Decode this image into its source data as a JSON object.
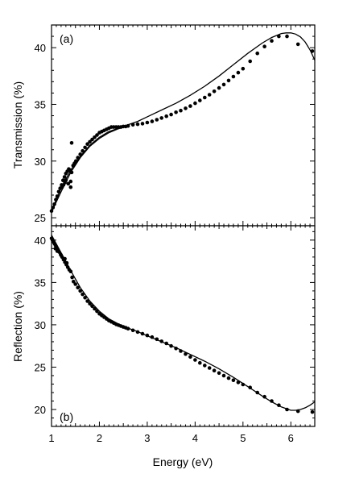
{
  "chart_data": [
    {
      "type": "scatter",
      "panel_label": "(a)",
      "xlabel": "",
      "ylabel": "Transmission (%)",
      "xlim": [
        1,
        6.5
      ],
      "ylim": [
        24.3,
        42
      ],
      "xticks": [
        1,
        2,
        3,
        4,
        5,
        6
      ],
      "yticks": [
        25,
        30,
        35,
        40
      ],
      "series": [
        {
          "kind": "points",
          "x": [
            1.0,
            1.03,
            1.06,
            1.09,
            1.12,
            1.15,
            1.18,
            1.21,
            1.24,
            1.27,
            1.3,
            1.33,
            1.36,
            1.39,
            1.42,
            1.45,
            1.48,
            1.51,
            1.55,
            1.6,
            1.65,
            1.7,
            1.75,
            1.8,
            1.85,
            1.9,
            1.95,
            2.0,
            2.05,
            2.1,
            2.15,
            2.2,
            2.25,
            2.3,
            2.35,
            2.4,
            2.45,
            2.5,
            2.55,
            2.6,
            2.7,
            2.8,
            2.9,
            3.0,
            3.1,
            3.2,
            3.3,
            3.4,
            3.5,
            3.6,
            3.7,
            3.8,
            3.9,
            4.0,
            4.1,
            4.2,
            4.3,
            4.4,
            4.5,
            4.6,
            4.7,
            4.8,
            4.9,
            5.0,
            5.15,
            5.3,
            5.45,
            5.6,
            5.75,
            5.92,
            6.15,
            6.45,
            1.42,
            1.4,
            1.4,
            1.35,
            1.3,
            1.28,
            1.25,
            1.22
          ],
          "y": [
            25.6,
            25.9,
            26.2,
            26.6,
            26.9,
            27.3,
            27.6,
            27.9,
            28.3,
            28.6,
            28.9,
            29.1,
            29.3,
            29.2,
            29.0,
            29.6,
            29.8,
            30.0,
            30.3,
            30.6,
            30.9,
            31.2,
            31.5,
            31.7,
            31.9,
            32.1,
            32.3,
            32.5,
            32.6,
            32.7,
            32.8,
            32.9,
            33.0,
            33.0,
            33.0,
            33.0,
            33.0,
            33.05,
            33.05,
            33.1,
            33.2,
            33.25,
            33.3,
            33.4,
            33.5,
            33.65,
            33.8,
            33.95,
            34.1,
            34.3,
            34.45,
            34.65,
            34.85,
            35.1,
            35.35,
            35.6,
            35.85,
            36.15,
            36.45,
            36.75,
            37.1,
            37.45,
            37.8,
            38.15,
            38.8,
            39.5,
            40.1,
            40.6,
            41.0,
            41.0,
            40.3,
            39.7,
            31.6,
            28.2,
            27.7,
            28.0,
            28.3,
            28.1,
            27.9,
            27.7
          ]
        },
        {
          "kind": "curve",
          "x": [
            1.0,
            1.2,
            1.4,
            1.6,
            1.8,
            2.0,
            2.2,
            2.4,
            2.6,
            2.8,
            3.0,
            3.3,
            3.6,
            3.9,
            4.2,
            4.5,
            4.8,
            5.1,
            5.4,
            5.6,
            5.8,
            5.9,
            6.0,
            6.1,
            6.2,
            6.3,
            6.4,
            6.5
          ],
          "y": [
            25.6,
            27.6,
            29.2,
            30.4,
            31.4,
            32.1,
            32.6,
            32.9,
            33.2,
            33.5,
            33.9,
            34.5,
            35.1,
            35.8,
            36.6,
            37.5,
            38.5,
            39.5,
            40.4,
            40.9,
            41.25,
            41.3,
            41.3,
            41.2,
            40.95,
            40.5,
            39.8,
            38.9
          ]
        },
        {
          "kind": "curve",
          "x": [
            1.0,
            1.2,
            1.4,
            1.6,
            1.8,
            2.0,
            2.2,
            2.4,
            2.5,
            2.6
          ],
          "y": [
            25.5,
            27.3,
            29.0,
            30.3,
            31.3,
            32.0,
            32.5,
            32.85,
            33.0,
            33.05
          ]
        }
      ]
    },
    {
      "type": "scatter",
      "panel_label": "(b)",
      "xlabel": "Energy (eV)",
      "ylabel": "Reflection (%)",
      "xlim": [
        1,
        6.5
      ],
      "ylim": [
        18,
        41.7
      ],
      "xticks": [
        1,
        2,
        3,
        4,
        5,
        6
      ],
      "yticks": [
        20,
        25,
        30,
        35,
        40
      ],
      "series": [
        {
          "kind": "points",
          "x": [
            1.0,
            1.02,
            1.04,
            1.06,
            1.08,
            1.1,
            1.13,
            1.16,
            1.19,
            1.22,
            1.25,
            1.28,
            1.31,
            1.34,
            1.37,
            1.4,
            1.43,
            1.46,
            1.5,
            1.55,
            1.6,
            1.65,
            1.7,
            1.75,
            1.8,
            1.85,
            1.9,
            1.95,
            2.0,
            2.05,
            2.1,
            2.15,
            2.2,
            2.25,
            2.3,
            2.35,
            2.4,
            2.45,
            2.5,
            2.55,
            2.6,
            2.7,
            2.8,
            2.9,
            3.0,
            3.1,
            3.2,
            3.3,
            3.4,
            3.5,
            3.6,
            3.7,
            3.8,
            3.9,
            4.0,
            4.1,
            4.2,
            4.3,
            4.4,
            4.5,
            4.6,
            4.7,
            4.8,
            4.9,
            5.0,
            5.15,
            5.3,
            5.45,
            5.6,
            5.75,
            5.92,
            6.15,
            6.45,
            1.08,
            1.12,
            1.2,
            1.28,
            1.32
          ],
          "y": [
            40.2,
            40.0,
            39.8,
            39.6,
            39.4,
            39.2,
            38.9,
            38.6,
            38.3,
            38.0,
            37.7,
            37.4,
            37.1,
            36.8,
            36.5,
            36.3,
            35.6,
            35.1,
            34.8,
            34.4,
            34.0,
            33.6,
            33.2,
            32.8,
            32.5,
            32.2,
            31.9,
            31.6,
            31.3,
            31.1,
            30.9,
            30.7,
            30.5,
            30.35,
            30.2,
            30.05,
            29.95,
            29.85,
            29.75,
            29.65,
            29.55,
            29.35,
            29.15,
            28.95,
            28.75,
            28.55,
            28.3,
            28.05,
            27.8,
            27.5,
            27.2,
            26.9,
            26.55,
            26.2,
            25.85,
            25.5,
            25.2,
            24.9,
            24.6,
            24.3,
            24.0,
            23.7,
            23.45,
            23.2,
            22.95,
            22.6,
            22.0,
            21.5,
            21.0,
            20.5,
            20.0,
            19.8,
            19.7,
            39.0,
            38.7,
            38.2,
            37.8,
            37.3
          ]
        },
        {
          "kind": "curve",
          "x": [
            1.0,
            1.2,
            1.4,
            1.6,
            1.8,
            2.0,
            2.2,
            2.4,
            2.6,
            2.8,
            3.0,
            3.3,
            3.6,
            3.9,
            4.2,
            4.5,
            4.8,
            5.1,
            5.4,
            5.6,
            5.8,
            6.0,
            6.1,
            6.2,
            6.3,
            6.4,
            6.5
          ],
          "y": [
            40.6,
            38.5,
            36.4,
            34.4,
            32.8,
            31.6,
            30.7,
            30.1,
            29.6,
            29.2,
            28.7,
            28.0,
            27.3,
            26.5,
            25.7,
            24.8,
            23.8,
            22.7,
            21.6,
            20.9,
            20.3,
            19.9,
            19.9,
            20.0,
            20.2,
            20.5,
            20.9
          ]
        }
      ]
    }
  ]
}
